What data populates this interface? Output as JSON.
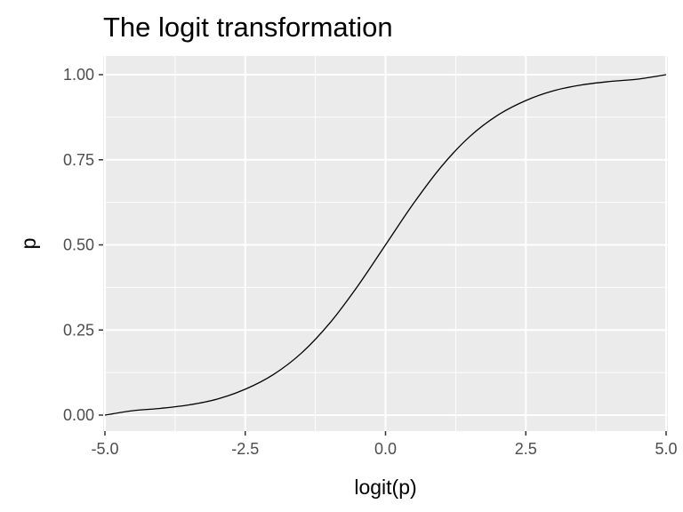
{
  "chart_data": {
    "type": "line",
    "title": "The logit transformation",
    "xlabel": "logit(p)",
    "ylabel": "p",
    "xlim": [
      -5.0,
      5.0
    ],
    "ylim": [
      0.0,
      1.0
    ],
    "x_ticks": [
      "-5.0",
      "-2.5",
      "0.0",
      "2.5",
      "5.0"
    ],
    "y_ticks": [
      "0.00",
      "0.25",
      "0.50",
      "0.75",
      "1.00"
    ],
    "grid": true,
    "legend": "none",
    "series": [
      {
        "x": [
          -5.0,
          -4.5,
          -4.0,
          -3.5,
          -3.0,
          -2.5,
          -2.0,
          -1.5,
          -1.0,
          -0.5,
          0.0,
          0.5,
          1.0,
          1.5,
          2.0,
          2.5,
          3.0,
          3.5,
          4.0,
          4.5,
          5.0
        ],
        "y": [
          0.0,
          0.013,
          0.02,
          0.03,
          0.047,
          0.076,
          0.119,
          0.182,
          0.269,
          0.378,
          0.5,
          0.622,
          0.731,
          0.818,
          0.881,
          0.924,
          0.953,
          0.97,
          0.98,
          0.987,
          1.0
        ]
      }
    ],
    "colors": {
      "panel": "#ebebeb",
      "grid_major": "#ffffff",
      "line": "#000000"
    }
  }
}
